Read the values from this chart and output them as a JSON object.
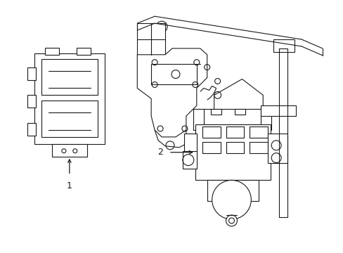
{
  "background_color": "#ffffff",
  "line_color": "#1a1a1a",
  "line_width": 0.8,
  "fig_width": 4.89,
  "fig_height": 3.6,
  "dpi": 100,
  "label1": "1",
  "label2": "2"
}
